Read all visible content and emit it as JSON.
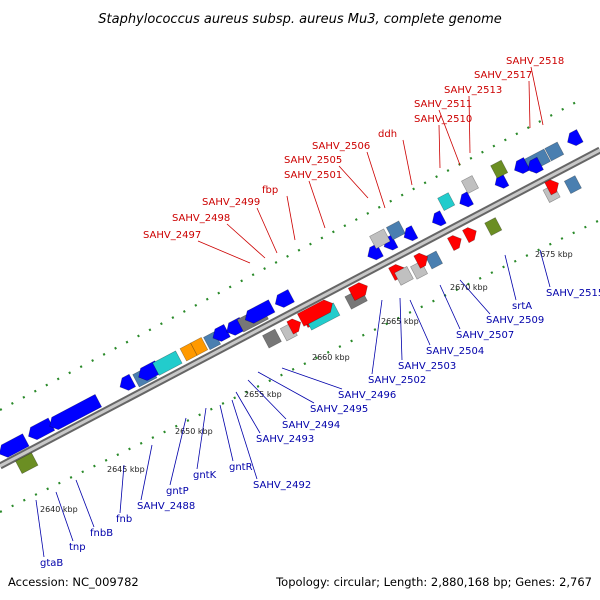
{
  "title": "Staphylococcus aureus subsp. aureus Mu3, complete genome",
  "footer": {
    "accession": "Accession: NC_009782",
    "summary": "Topology: circular; Length: 2,880,168 bp; Genes: 2,767"
  },
  "colors": {
    "forward_label": "#cc0000",
    "reverse_label": "#0000aa",
    "forward_feature": "#ff0000",
    "reverse_feature": "#0000ff",
    "backbone": "#999999",
    "dotted_track": "#2a8a2a"
  },
  "ticks": [
    {
      "label": "2640 kbp"
    },
    {
      "label": "2645 kbp"
    },
    {
      "label": "2650 kbp"
    },
    {
      "label": "2655 kbp"
    },
    {
      "label": "2660 kbp"
    },
    {
      "label": "2665 kbp"
    },
    {
      "label": "2670 kbp"
    },
    {
      "label": "2675 kbp"
    }
  ],
  "forward_labels": [
    {
      "text": "SAHV_2497"
    },
    {
      "text": "SAHV_2498"
    },
    {
      "text": "SAHV_2499"
    },
    {
      "text": "fbp"
    },
    {
      "text": "SAHV_2501"
    },
    {
      "text": "SAHV_2505"
    },
    {
      "text": "SAHV_2506"
    },
    {
      "text": "ddh"
    },
    {
      "text": "SAHV_2510"
    },
    {
      "text": "SAHV_2511"
    },
    {
      "text": "SAHV_2513"
    },
    {
      "text": "SAHV_2517"
    },
    {
      "text": "SAHV_2518"
    }
  ],
  "reverse_labels": [
    {
      "text": "gtaB"
    },
    {
      "text": "tnp"
    },
    {
      "text": "fnbB"
    },
    {
      "text": "fnb"
    },
    {
      "text": "SAHV_2488"
    },
    {
      "text": "gntP"
    },
    {
      "text": "gntK"
    },
    {
      "text": "gntR"
    },
    {
      "text": "SAHV_2492"
    },
    {
      "text": "SAHV_2493"
    },
    {
      "text": "SAHV_2494"
    },
    {
      "text": "SAHV_2495"
    },
    {
      "text": "SAHV_2496"
    },
    {
      "text": "SAHV_2502"
    },
    {
      "text": "SAHV_2503"
    },
    {
      "text": "SAHV_2504"
    },
    {
      "text": "SAHV_2507"
    },
    {
      "text": "SAHV_2509"
    },
    {
      "text": "srtA"
    },
    {
      "text": "SAHV_2515"
    }
  ]
}
